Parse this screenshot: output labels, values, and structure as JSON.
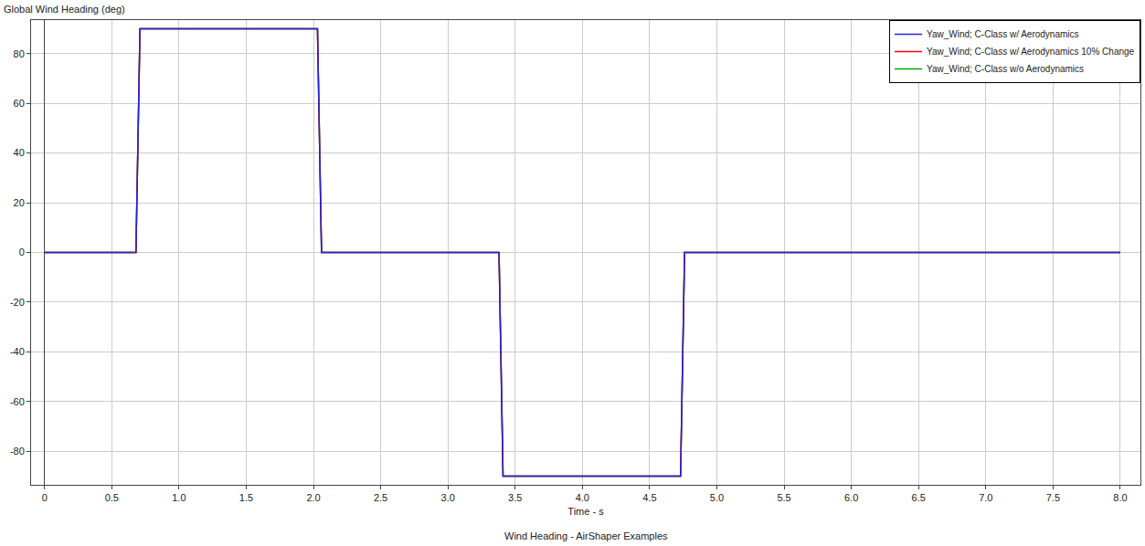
{
  "chart_data": {
    "type": "line",
    "title": "Wind Heading - AirShaper Examples",
    "x_label": "Time - s",
    "y_label": "Global Wind Heading (deg)",
    "x": [
      0,
      0.68,
      0.71,
      2.03,
      2.06,
      3.38,
      3.41,
      4.73,
      4.76,
      8.0
    ],
    "series": [
      {
        "name": "Yaw_Wind; C-Class w/ Aerodynamics",
        "color": "#2222dd",
        "values": [
          0,
          0,
          90,
          90,
          0,
          0,
          -90,
          -90,
          0,
          0
        ]
      },
      {
        "name": "Yaw_Wind; C-Class w/ Aerodynamics 10% Change",
        "color": "#ff0000",
        "values": [
          0,
          0,
          90,
          90,
          0,
          0,
          -90,
          -90,
          0,
          0
        ]
      },
      {
        "name": "Yaw_Wind; C-Class w/o Aerodynamics",
        "color": "#00aa00",
        "values": [
          0,
          0,
          90,
          90,
          0,
          0,
          -90,
          -90,
          0,
          0
        ]
      }
    ],
    "xlim": [
      -0.1,
      8.15
    ],
    "ylim": [
      -93.5,
      93.5
    ],
    "xticks": [
      0,
      0.5,
      {
        "value": 1,
        "label": "1.0"
      },
      1.5,
      {
        "value": 2,
        "label": "2.0"
      },
      2.5,
      {
        "value": 3,
        "label": "3.0"
      },
      3.5,
      {
        "value": 4,
        "label": "4.0"
      },
      4.5,
      {
        "value": 5,
        "label": "5.0"
      },
      5.5,
      {
        "value": 6,
        "label": "6.0"
      },
      6.5,
      {
        "value": 7,
        "label": "7.0"
      },
      7.5,
      {
        "value": 8,
        "label": "8.0"
      }
    ],
    "yticks": [
      -80,
      -60,
      -40,
      -20,
      0,
      20,
      40,
      60,
      80
    ],
    "grid": true,
    "legend": "upper right"
  }
}
